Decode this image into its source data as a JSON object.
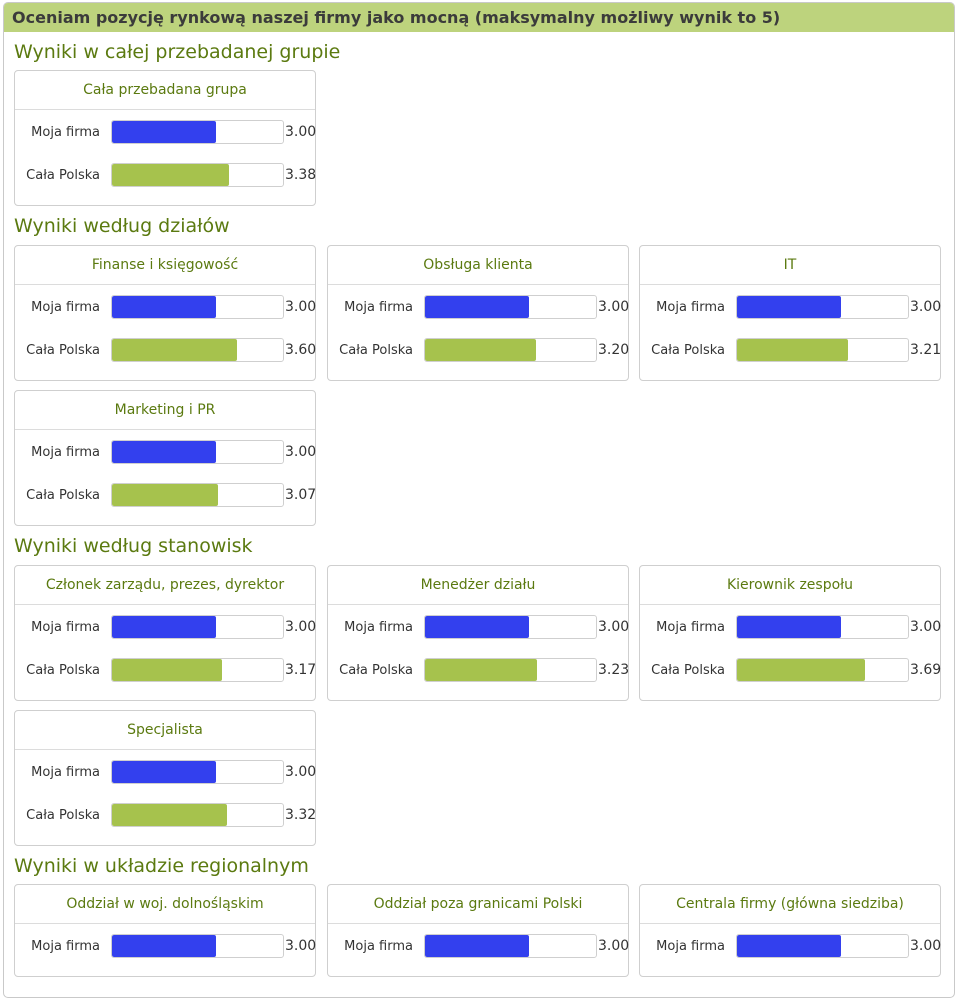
{
  "header": {
    "title": "Oceniam pozycję rynkową naszej firmy jako mocną (maksymalny możliwy wynik to 5)"
  },
  "chart_data": {
    "type": "bar",
    "max_score": 5,
    "colors": {
      "moja_firma": "#3340ee",
      "cala_polska": "#a6c24d",
      "header": "#bdd37d",
      "titles": "#5b7a10"
    },
    "sections": [
      {
        "title": "Wyniki w całej przebadanej grupie",
        "charts": [
          {
            "title": "Cała przebadana grupa",
            "rows": [
              {
                "label": "Moja firma",
                "value": 3.0,
                "display": "3.00",
                "series": "moja_firma"
              },
              {
                "label": "Cała Polska",
                "value": 3.38,
                "display": "3.38",
                "series": "cala_polska"
              }
            ]
          }
        ]
      },
      {
        "title": "Wyniki według działów",
        "charts": [
          {
            "title": "Finanse i księgowość",
            "rows": [
              {
                "label": "Moja firma",
                "value": 3.0,
                "display": "3.00",
                "series": "moja_firma"
              },
              {
                "label": "Cała Polska",
                "value": 3.6,
                "display": "3.60",
                "series": "cala_polska"
              }
            ]
          },
          {
            "title": "Obsługa klienta",
            "rows": [
              {
                "label": "Moja firma",
                "value": 3.0,
                "display": "3.00",
                "series": "moja_firma"
              },
              {
                "label": "Cała Polska",
                "value": 3.2,
                "display": "3.20",
                "series": "cala_polska"
              }
            ]
          },
          {
            "title": "IT",
            "rows": [
              {
                "label": "Moja firma",
                "value": 3.0,
                "display": "3.00",
                "series": "moja_firma"
              },
              {
                "label": "Cała Polska",
                "value": 3.21,
                "display": "3.21",
                "series": "cala_polska"
              }
            ]
          },
          {
            "title": "Marketing i PR",
            "rows": [
              {
                "label": "Moja firma",
                "value": 3.0,
                "display": "3.00",
                "series": "moja_firma"
              },
              {
                "label": "Cała Polska",
                "value": 3.07,
                "display": "3.07",
                "series": "cala_polska"
              }
            ]
          }
        ]
      },
      {
        "title": "Wyniki według stanowisk",
        "charts": [
          {
            "title": "Członek zarządu, prezes, dyrektor",
            "rows": [
              {
                "label": "Moja firma",
                "value": 3.0,
                "display": "3.00",
                "series": "moja_firma"
              },
              {
                "label": "Cała Polska",
                "value": 3.17,
                "display": "3.17",
                "series": "cala_polska"
              }
            ]
          },
          {
            "title": "Menedżer działu",
            "rows": [
              {
                "label": "Moja firma",
                "value": 3.0,
                "display": "3.00",
                "series": "moja_firma"
              },
              {
                "label": "Cała Polska",
                "value": 3.23,
                "display": "3.23",
                "series": "cala_polska"
              }
            ]
          },
          {
            "title": "Kierownik zespołu",
            "rows": [
              {
                "label": "Moja firma",
                "value": 3.0,
                "display": "3.00",
                "series": "moja_firma"
              },
              {
                "label": "Cała Polska",
                "value": 3.69,
                "display": "3.69",
                "series": "cala_polska"
              }
            ]
          },
          {
            "title": "Specjalista",
            "rows": [
              {
                "label": "Moja firma",
                "value": 3.0,
                "display": "3.00",
                "series": "moja_firma"
              },
              {
                "label": "Cała Polska",
                "value": 3.32,
                "display": "3.32",
                "series": "cala_polska"
              }
            ]
          }
        ]
      },
      {
        "title": "Wyniki w układzie regionalnym",
        "charts": [
          {
            "title": "Oddział w woj. dolnośląskim",
            "rows": [
              {
                "label": "Moja firma",
                "value": 3.0,
                "display": "3.00",
                "series": "moja_firma"
              }
            ]
          },
          {
            "title": "Oddział poza granicami Polski",
            "rows": [
              {
                "label": "Moja firma",
                "value": 3.0,
                "display": "3.00",
                "series": "moja_firma"
              }
            ]
          },
          {
            "title": "Centrala firmy (główna siedziba)",
            "rows": [
              {
                "label": "Moja firma",
                "value": 3.0,
                "display": "3.00",
                "series": "moja_firma"
              }
            ]
          }
        ]
      }
    ]
  }
}
